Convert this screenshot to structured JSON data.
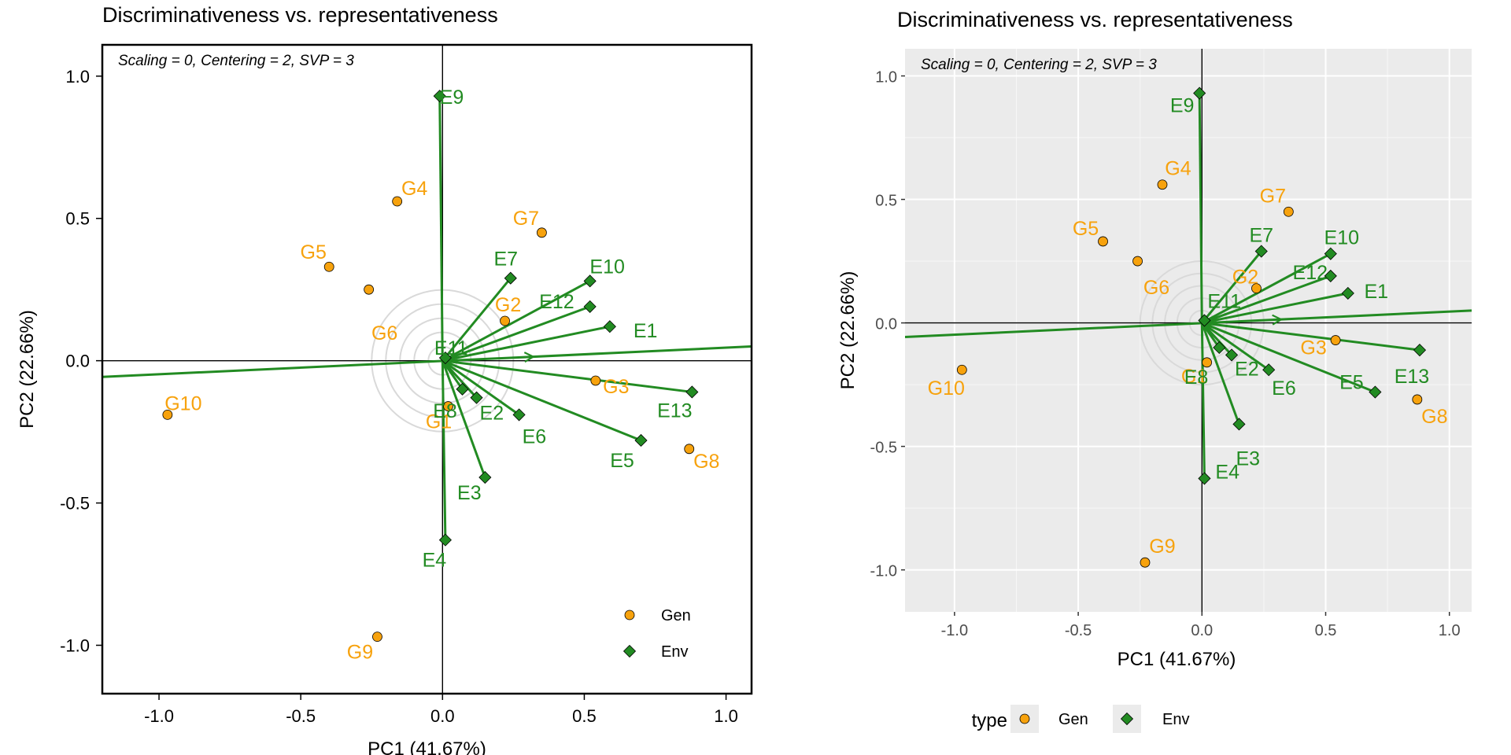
{
  "colors": {
    "gen": "#f7a20d",
    "env": "#228b22",
    "panel_bg": "#ebebeb",
    "circle": "#d9d9d9"
  },
  "chart_data": [
    {
      "type": "scatter",
      "plot_kind": "GGE biplot (discriminativeness vs. representativeness)",
      "title": "Discriminativeness vs. representativeness",
      "subtitle": "Scaling = 0, Centering = 2, SVP = 3",
      "xlabel": "PC1 (41.67%)",
      "ylabel": "PC2 (22.66%)",
      "xlim": [
        -1.2,
        1.09
      ],
      "ylim": [
        -1.17,
        1.11
      ],
      "xticks": [
        "-1.0",
        "-0.5",
        "0.0",
        "0.5",
        "1.0"
      ],
      "yticks": [
        "-1.0",
        "-0.5",
        "0.0",
        "0.5",
        "1.0"
      ],
      "grid": false,
      "legend_position": "bottom-right inside",
      "legend": [
        {
          "label": "Gen",
          "shape": "circle"
        },
        {
          "label": "Env",
          "shape": "diamond"
        }
      ],
      "series": [
        {
          "name": "Gen",
          "points": [
            {
              "label": "G1",
              "x": 0.02,
              "y": -0.16
            },
            {
              "label": "G2",
              "x": 0.22,
              "y": 0.14
            },
            {
              "label": "G3",
              "x": 0.54,
              "y": -0.07
            },
            {
              "label": "G4",
              "x": -0.16,
              "y": 0.56
            },
            {
              "label": "G5",
              "x": -0.4,
              "y": 0.33
            },
            {
              "label": "G6",
              "x": -0.26,
              "y": 0.25
            },
            {
              "label": "G7",
              "x": 0.35,
              "y": 0.45
            },
            {
              "label": "G8",
              "x": 0.87,
              "y": -0.31
            },
            {
              "label": "G9",
              "x": -0.23,
              "y": -0.97
            },
            {
              "label": "G10",
              "x": -0.97,
              "y": -0.19
            }
          ]
        },
        {
          "name": "Env",
          "points": [
            {
              "label": "E1",
              "x": 0.59,
              "y": 0.12
            },
            {
              "label": "E2",
              "x": 0.12,
              "y": -0.13
            },
            {
              "label": "E3",
              "x": 0.15,
              "y": -0.41
            },
            {
              "label": "E4",
              "x": 0.01,
              "y": -0.63
            },
            {
              "label": "E5",
              "x": 0.7,
              "y": -0.28
            },
            {
              "label": "E6",
              "x": 0.27,
              "y": -0.19
            },
            {
              "label": "E7",
              "x": 0.24,
              "y": 0.29
            },
            {
              "label": "E8",
              "x": 0.07,
              "y": -0.1
            },
            {
              "label": "E9",
              "x": -0.01,
              "y": 0.93
            },
            {
              "label": "E10",
              "x": 0.52,
              "y": 0.28
            },
            {
              "label": "E11",
              "x": 0.01,
              "y": 0.01
            },
            {
              "label": "E12",
              "x": 0.52,
              "y": 0.19
            },
            {
              "label": "E13",
              "x": 0.88,
              "y": -0.11
            }
          ]
        }
      ],
      "average_environment_axis": {
        "from": [
          -1.2,
          -0.057
        ],
        "to": [
          1.09,
          0.05
        ],
        "arrow_at": [
          0.32,
          0.0
        ]
      }
    },
    {
      "type": "scatter",
      "plot_kind": "GGE biplot (discriminativeness vs. representativeness)",
      "title": "Discriminativeness vs. representativeness",
      "subtitle": "Scaling = 0, Centering = 2, SVP = 3",
      "xlabel": "PC1 (41.67%)",
      "ylabel": "PC2 (22.66%)",
      "xlim": [
        -1.2,
        1.09
      ],
      "ylim": [
        -1.17,
        1.11
      ],
      "xticks": [
        "-1.0",
        "-0.5",
        "0.0",
        "0.5",
        "1.0"
      ],
      "yticks": [
        "-1.0",
        "-0.5",
        "0.0",
        "0.5",
        "1.0"
      ],
      "grid": true,
      "legend_position": "bottom",
      "legend_title": "type",
      "legend": [
        {
          "label": "Gen",
          "shape": "circle"
        },
        {
          "label": "Env",
          "shape": "diamond"
        }
      ],
      "series": [
        {
          "name": "Gen",
          "points": [
            {
              "label": "G1",
              "x": 0.02,
              "y": -0.16
            },
            {
              "label": "G2",
              "x": 0.22,
              "y": 0.14
            },
            {
              "label": "G3",
              "x": 0.54,
              "y": -0.07
            },
            {
              "label": "G4",
              "x": -0.16,
              "y": 0.56
            },
            {
              "label": "G5",
              "x": -0.4,
              "y": 0.33
            },
            {
              "label": "G6",
              "x": -0.26,
              "y": 0.25
            },
            {
              "label": "G7",
              "x": 0.35,
              "y": 0.45
            },
            {
              "label": "G8",
              "x": 0.87,
              "y": -0.31
            },
            {
              "label": "G9",
              "x": -0.23,
              "y": -0.97
            },
            {
              "label": "G10",
              "x": -0.97,
              "y": -0.19
            }
          ]
        },
        {
          "name": "Env",
          "points": [
            {
              "label": "E1",
              "x": 0.59,
              "y": 0.12
            },
            {
              "label": "E2",
              "x": 0.12,
              "y": -0.13
            },
            {
              "label": "E3",
              "x": 0.15,
              "y": -0.41
            },
            {
              "label": "E4",
              "x": 0.01,
              "y": -0.63
            },
            {
              "label": "E5",
              "x": 0.7,
              "y": -0.28
            },
            {
              "label": "E6",
              "x": 0.27,
              "y": -0.19
            },
            {
              "label": "E7",
              "x": 0.24,
              "y": 0.29
            },
            {
              "label": "E8",
              "x": 0.07,
              "y": -0.1
            },
            {
              "label": "E9",
              "x": -0.01,
              "y": 0.93
            },
            {
              "label": "E10",
              "x": 0.52,
              "y": 0.28
            },
            {
              "label": "E11",
              "x": 0.01,
              "y": 0.01
            },
            {
              "label": "E12",
              "x": 0.52,
              "y": 0.19
            },
            {
              "label": "E13",
              "x": 0.88,
              "y": -0.11
            }
          ]
        }
      ],
      "average_environment_axis": {
        "from": [
          -1.2,
          -0.057
        ],
        "to": [
          1.09,
          0.05
        ],
        "arrow_at": [
          0.32,
          0.0
        ]
      }
    }
  ]
}
